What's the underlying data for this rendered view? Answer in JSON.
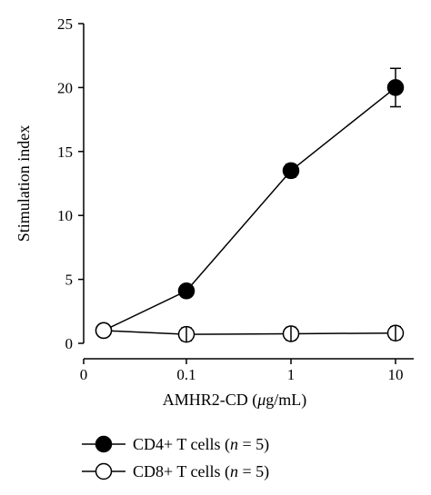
{
  "chart_data": {
    "type": "line",
    "xlabel": "AMHR2-CD (μg/mL)",
    "ylabel": "Stimulation index",
    "x": [
      "0",
      "0.1",
      "1",
      "10"
    ],
    "ylim": [
      0,
      25
    ],
    "yticks": [
      "0",
      "5",
      "10",
      "15",
      "20",
      "25"
    ],
    "grid": false,
    "legend_position": "bottom-left",
    "series": [
      {
        "name": "CD4+ T cells (n = 5)",
        "marker": "filled-circle",
        "color": "#000000",
        "points": [
          {
            "x": "0",
            "y": 1.0,
            "err": 0.0
          },
          {
            "x": "0.1",
            "y": 4.1,
            "err": 0.3
          },
          {
            "x": "1",
            "y": 13.5,
            "err": 0.5
          },
          {
            "x": "10",
            "y": 20.0,
            "err": 1.5
          }
        ]
      },
      {
        "name": "CD8+ T cells (n = 5)",
        "marker": "open-circle",
        "color": "#000000",
        "points": [
          {
            "x": "0",
            "y": 1.0,
            "err": 0.0
          },
          {
            "x": "0.1",
            "y": 0.7,
            "err": 0.5
          },
          {
            "x": "1",
            "y": 0.75,
            "err": 0.5
          },
          {
            "x": "10",
            "y": 0.8,
            "err": 0.5
          }
        ]
      }
    ]
  }
}
